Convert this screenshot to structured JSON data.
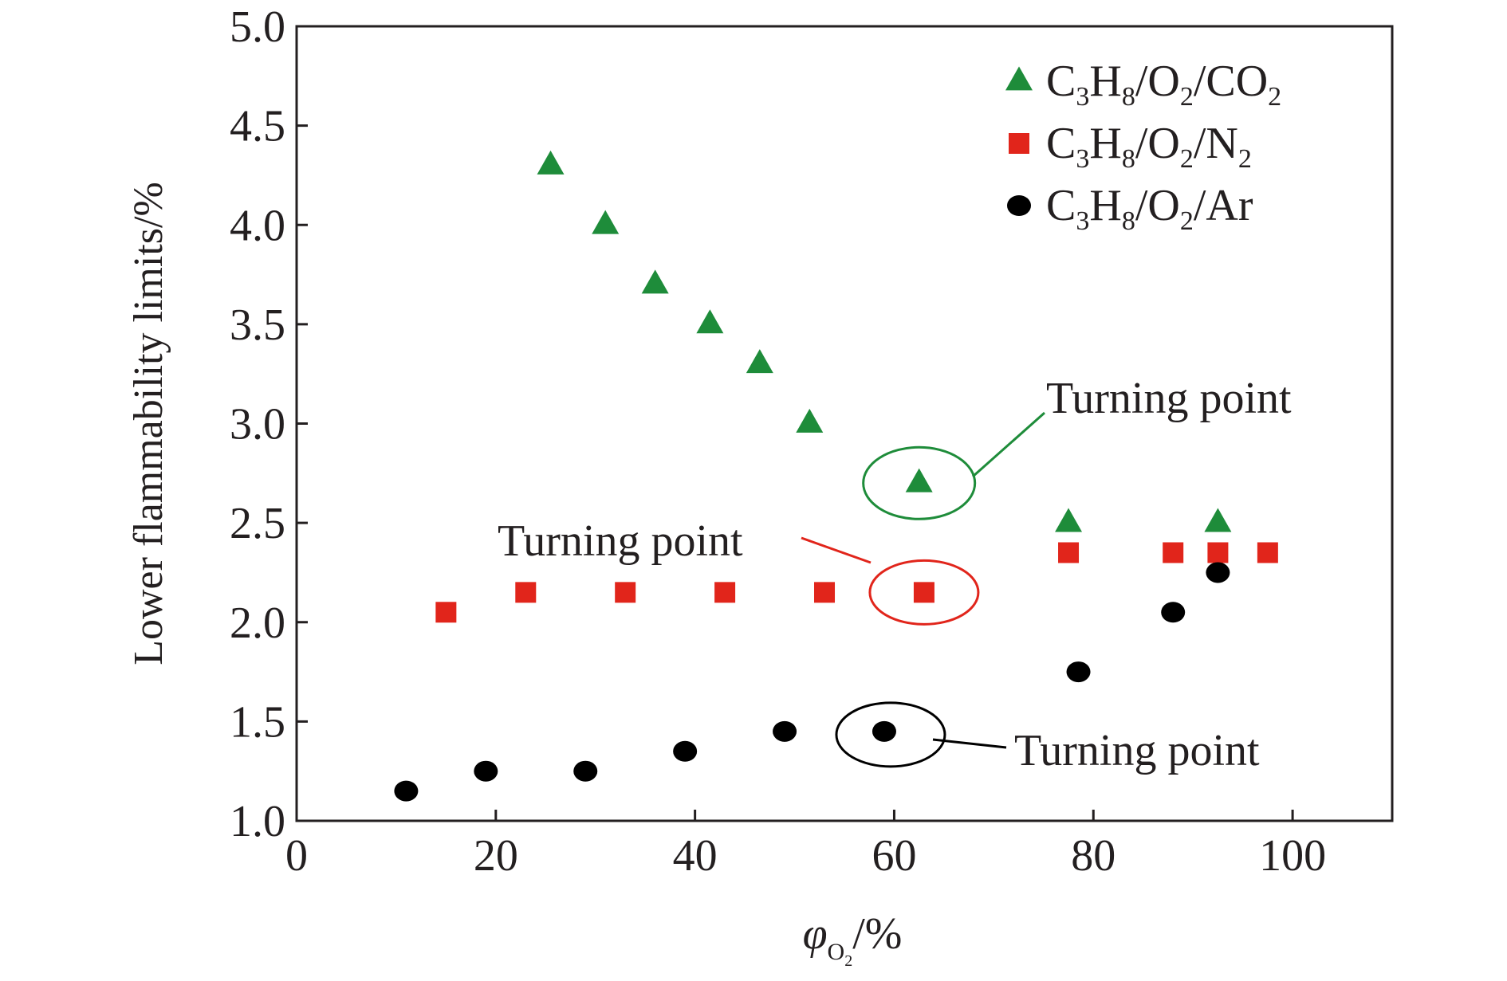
{
  "chart_data": {
    "type": "scatter",
    "title": "",
    "xlabel": "φO2/%",
    "xlabel_parts": {
      "symbol": "φ",
      "sub_letter": "O",
      "sub_num": "2",
      "unit": "/%"
    },
    "ylabel": "Lower flammability limits/%",
    "xlim": [
      0,
      110
    ],
    "ylim": [
      1.0,
      5.0
    ],
    "x_ticks": [
      0,
      20,
      40,
      60,
      80,
      100
    ],
    "x_tick_labels": [
      "0",
      "20",
      "40",
      "60",
      "80",
      "100"
    ],
    "y_ticks": [
      1.0,
      1.5,
      2.0,
      2.5,
      3.0,
      3.5,
      4.0,
      4.5,
      5.0
    ],
    "y_tick_labels": [
      "1.0",
      "1.5",
      "2.0",
      "2.5",
      "3.0",
      "3.5",
      "4.0",
      "4.5",
      "5.0"
    ],
    "grid": false,
    "legend_position": "top-right",
    "series": [
      {
        "name": "C3H8/O2/CO2",
        "name_parts": [
          "C",
          "3",
          "H",
          "8",
          "/O",
          "2",
          "/CO",
          "2"
        ],
        "marker": "triangle",
        "color": "#1e8c3a",
        "x": [
          25.5,
          31,
          36,
          41.5,
          46.5,
          51.5,
          62.5,
          77.5,
          92.5
        ],
        "y": [
          4.3,
          4.0,
          3.7,
          3.5,
          3.3,
          3.0,
          2.7,
          2.5,
          2.5
        ]
      },
      {
        "name": "C3H8/O2/N2",
        "name_parts": [
          "C",
          "3",
          "H",
          "8",
          "/O",
          "2",
          "/N",
          "2"
        ],
        "marker": "square",
        "color": "#e1251b",
        "x": [
          15,
          23,
          33,
          43,
          53,
          63,
          77.5,
          88,
          92.5,
          97.5
        ],
        "y": [
          2.05,
          2.15,
          2.15,
          2.15,
          2.15,
          2.15,
          2.35,
          2.35,
          2.35,
          2.35
        ]
      },
      {
        "name": "C3H8/O2/Ar",
        "name_parts": [
          "C",
          "3",
          "H",
          "8",
          "/O",
          "2",
          "/Ar",
          ""
        ],
        "marker": "circle",
        "color": "#000000",
        "x": [
          11,
          19,
          29,
          39,
          49,
          59,
          78.5,
          88,
          92.5
        ],
        "y": [
          1.15,
          1.25,
          1.25,
          1.35,
          1.45,
          1.45,
          1.75,
          2.05,
          2.25
        ]
      }
    ],
    "annotations": [
      {
        "text": "Turning point",
        "series": "C3H8/O2/CO2",
        "x": 62.5,
        "y": 2.7,
        "color": "#1e8c3a"
      },
      {
        "text": "Turning point",
        "series": "C3H8/O2/N2",
        "x": 63,
        "y": 2.15,
        "color": "#e1251b"
      },
      {
        "text": "Turning point",
        "series": "C3H8/O2/Ar",
        "x": 59,
        "y": 1.45,
        "color": "#000000"
      }
    ]
  }
}
